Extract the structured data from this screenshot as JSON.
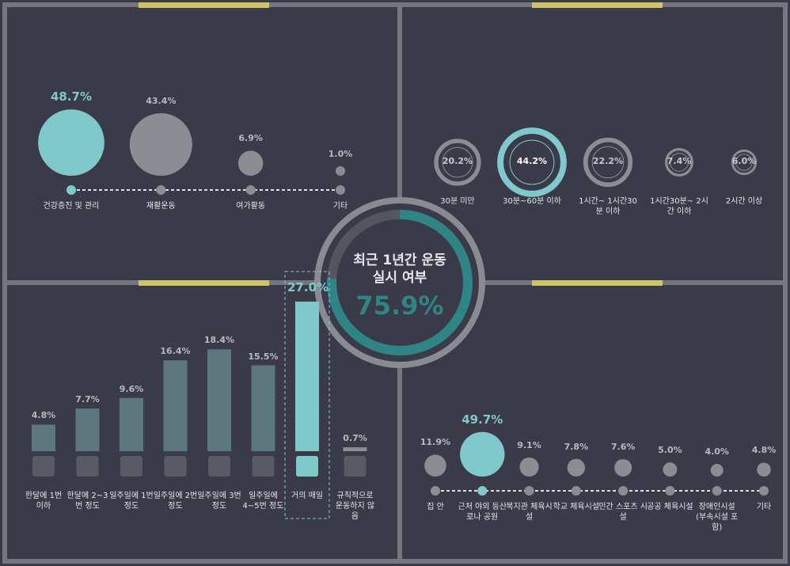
{
  "chart_data": [
    {
      "type": "dotline",
      "categories": [
        "건강증진 및 관리",
        "재활운동",
        "여가활동",
        "기타"
      ],
      "values": [
        48.7,
        43.4,
        6.9,
        1.0
      ],
      "value_labels": [
        "48.7%",
        "43.4%",
        "6.9%",
        "1.0%"
      ],
      "colors": [
        "#7fc9cc",
        "#8c8d93",
        "#8c8d93",
        "#8c8d93"
      ]
    },
    {
      "type": "clock",
      "categories": [
        "30분 미만",
        "30분~60분 이하",
        "1시간~ 1시간30분 이하",
        "1시간30분~ 2시간 이하",
        "2시간 이상"
      ],
      "values": [
        20.2,
        44.2,
        22.2,
        7.4,
        6.0
      ],
      "value_labels": [
        "20.2%",
        "44.2%",
        "22.2%",
        "7.4%",
        "6.0%"
      ],
      "colors": [
        "#8c8d93",
        "#7fc9cc",
        "#8c8d93",
        "#8c8d93",
        "#8c8d93"
      ]
    },
    {
      "type": "donut",
      "title": "최근 1년간 운동 실시 여부",
      "value": 75.9,
      "value_label": "75.9%",
      "color": "#2f8486"
    },
    {
      "type": "bar",
      "categories": [
        "한달에 1번 이하",
        "한달에 2~3번 정도",
        "일주일에 1번 정도",
        "일주일에 2번 정도",
        "일주일에 3번 정도",
        "일주일에 4~5번 정도",
        "거의 매일",
        "규칙적으로 운동하지 않음"
      ],
      "values": [
        4.8,
        7.7,
        9.6,
        16.4,
        18.4,
        15.5,
        27.0,
        0.7
      ],
      "value_labels": [
        "4.8%",
        "7.7%",
        "9.6%",
        "16.4%",
        "18.4%",
        "15.5%",
        "27.0%",
        "0.7%"
      ],
      "colors": [
        "#5c787e",
        "#5c787e",
        "#5c787e",
        "#5c787e",
        "#5c787e",
        "#5c787e",
        "#7fc9cc",
        "#8c8d93"
      ]
    },
    {
      "type": "dotline",
      "categories": [
        "집 안",
        "근처 야외 등산로나 공원",
        "복지관 체육시설",
        "학교 체육시설",
        "민간 스포츠 시설",
        "공공 체육시설",
        "장애인시설 (부속시설 포함)",
        "기타"
      ],
      "values": [
        11.9,
        49.7,
        9.1,
        7.8,
        7.6,
        5.0,
        4.0,
        4.8
      ],
      "value_labels": [
        "11.9%",
        "49.7%",
        "9.1%",
        "7.8%",
        "7.6%",
        "5.0%",
        "4.0%",
        "4.8%"
      ],
      "colors": [
        "#8c8d93",
        "#7fc9cc",
        "#8c8d93",
        "#8c8d93",
        "#8c8d93",
        "#8c8d93",
        "#8c8d93",
        "#8c8d93"
      ]
    }
  ]
}
